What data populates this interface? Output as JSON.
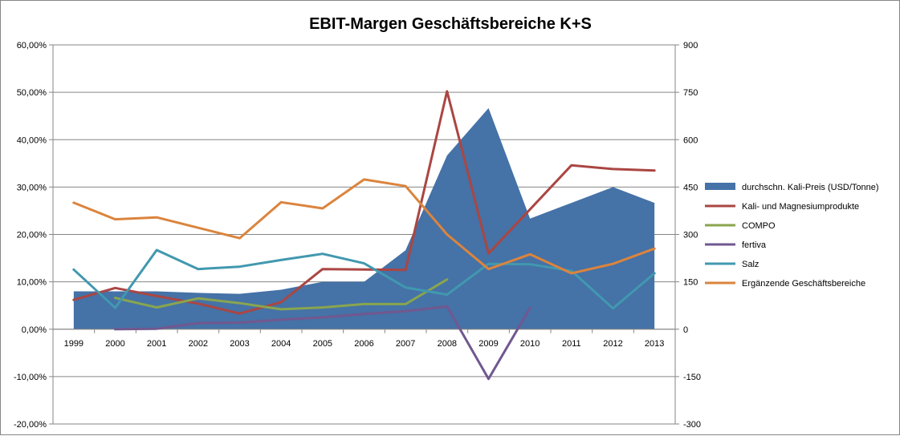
{
  "chart_data": {
    "type": "line",
    "title": "EBIT-Margen Geschäftsbereiche K+S",
    "categories": [
      "1999",
      "2000",
      "2001",
      "2002",
      "2003",
      "2004",
      "2005",
      "2006",
      "2007",
      "2008",
      "2009",
      "2010",
      "2011",
      "2012",
      "2013"
    ],
    "y_left": {
      "min": -0.2,
      "max": 0.6,
      "step": 0.1,
      "tick_labels": [
        "-20,00%",
        "-10,00%",
        "0,00%",
        "10,00%",
        "20,00%",
        "30,00%",
        "40,00%",
        "50,00%",
        "60,00%"
      ]
    },
    "y_right": {
      "min": -300,
      "max": 900,
      "step": 150,
      "tick_labels": [
        "-300",
        "-150",
        "0",
        "150",
        "300",
        "450",
        "600",
        "750",
        "900"
      ]
    },
    "area_series": {
      "name": "durchschn. Kali-Preis (USD/Tonne)",
      "axis": "right",
      "color": "#4572A7",
      "values": [
        120,
        120,
        120,
        115,
        112,
        125,
        150,
        150,
        250,
        550,
        700,
        350,
        400,
        450,
        400
      ]
    },
    "series": [
      {
        "name": "Kali- und Magnesiumprodukte",
        "axis": "left",
        "color": "#AA4643",
        "values": [
          0.062,
          0.087,
          0.07,
          0.054,
          0.033,
          0.057,
          0.127,
          0.126,
          0.125,
          0.502,
          0.16,
          0.253,
          0.346,
          0.338,
          0.335
        ]
      },
      {
        "name": "COMPO",
        "axis": "left",
        "color": "#89A54E",
        "values": [
          null,
          0.066,
          0.046,
          0.065,
          0.055,
          0.042,
          0.046,
          0.053,
          0.053,
          0.105,
          null,
          null,
          null,
          null,
          null
        ]
      },
      {
        "name": "fertiva",
        "axis": "left",
        "color": "#71588F",
        "values": [
          null,
          0.0,
          0.001,
          0.013,
          0.014,
          0.02,
          0.025,
          0.032,
          0.038,
          0.048,
          -0.105,
          0.045,
          null,
          null,
          null
        ]
      },
      {
        "name": "Salz",
        "axis": "left",
        "color": "#4198AF",
        "values": [
          0.126,
          0.045,
          0.167,
          0.127,
          0.132,
          0.146,
          0.159,
          0.139,
          0.088,
          0.073,
          0.138,
          0.137,
          0.123,
          0.044,
          0.118
        ]
      },
      {
        "name": "Ergänzende Geschäftsbereiche",
        "axis": "left",
        "color": "#DB843D",
        "values": [
          0.267,
          0.232,
          0.236,
          0.214,
          0.192,
          0.268,
          0.255,
          0.316,
          0.302,
          0.2,
          0.127,
          0.158,
          0.118,
          0.138,
          0.17
        ]
      }
    ],
    "legend_position": "right",
    "grid": "horizontal"
  }
}
